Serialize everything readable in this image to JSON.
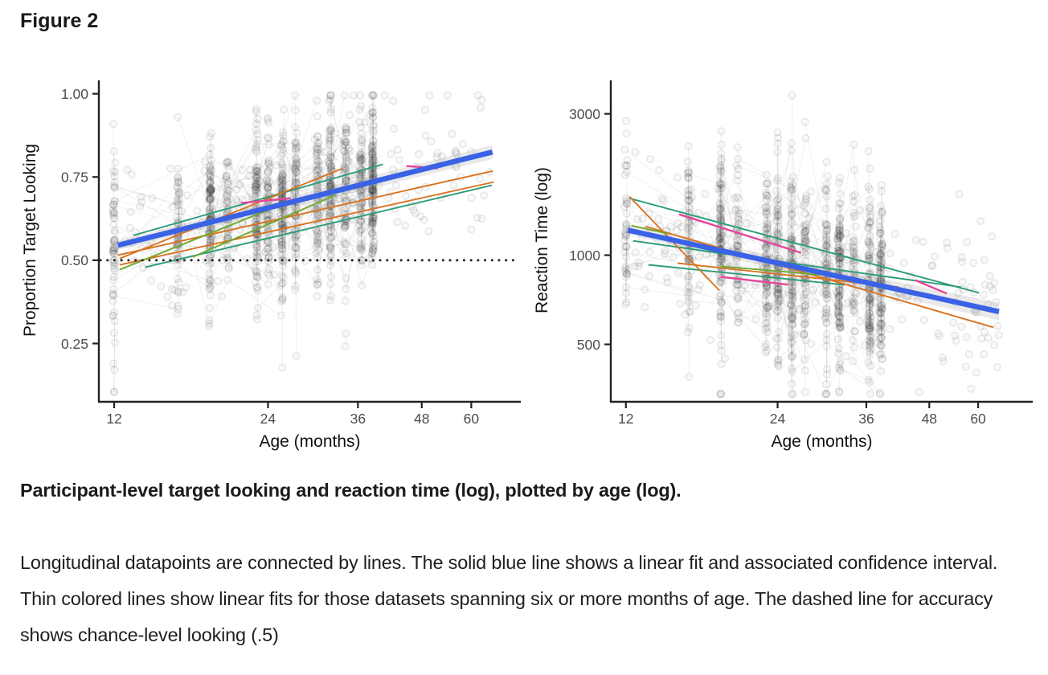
{
  "figure": {
    "label": "Figure 2"
  },
  "caption": {
    "bold": "Participant-level target looking and reaction time (log), plotted by age (log).",
    "body": "Longitudinal datapoints are connected by lines. The solid blue line shows a linear fit and associated confidence interval. Thin colored lines show linear fits for those datasets spanning six or more months of age. The dashed line for accuracy shows chance-level looking (.5)"
  },
  "colors": {
    "fit_blue": "#3A62E6",
    "teal": "#2A9D77",
    "orange": "#D9731F",
    "pink": "#E5459A",
    "green": "#6FA92F",
    "axis": "#222222",
    "tick_label": "#4d4d4d",
    "title_text": "#111111"
  },
  "chart_data": [
    {
      "type": "scatter",
      "name": "accuracy-panel",
      "xlabel": "Age (months)",
      "ylabel": "Proportion Target Looking",
      "x_scale": "log",
      "y_scale": "linear",
      "x_ticks": [
        12,
        24,
        36,
        48,
        60
      ],
      "y_ticks": [
        0.25,
        0.5,
        0.75,
        1.0
      ],
      "y_tick_labels": [
        "0.25",
        "0.50",
        "0.75",
        "1.00"
      ],
      "x_range": [
        11.2,
        75
      ],
      "y_range": [
        0.075,
        1.045
      ],
      "y_clamp": [
        0.105,
        0.995
      ],
      "grid": false,
      "legend": "none",
      "chance_line": 0.5,
      "fit_line": {
        "x": [
          12.2,
          66
        ],
        "y": [
          0.545,
          0.825
        ]
      },
      "ci_halfwidth": [
        0.013,
        0.021
      ],
      "thin_lines": [
        {
          "color": "teal",
          "x": [
            13.1,
            40.3
          ],
          "y": [
            0.575,
            0.788
          ]
        },
        {
          "color": "teal",
          "x": [
            13.8,
            65.8
          ],
          "y": [
            0.479,
            0.725
          ]
        },
        {
          "color": "orange",
          "x": [
            12.2,
            66.1
          ],
          "y": [
            0.515,
            0.768
          ]
        },
        {
          "color": "orange",
          "x": [
            12.3,
            66.4
          ],
          "y": [
            0.486,
            0.735
          ]
        },
        {
          "color": "orange",
          "x": [
            12.3,
            33.5
          ],
          "y": [
            0.505,
            0.775
          ]
        },
        {
          "color": "green",
          "x": [
            12.3,
            24.4
          ],
          "y": [
            0.472,
            0.655
          ]
        },
        {
          "color": "green",
          "x": [
            17.1,
            32.6
          ],
          "y": [
            0.51,
            0.696
          ]
        },
        {
          "color": "pink",
          "x": [
            21.3,
            26.6
          ],
          "y": [
            0.672,
            0.686
          ]
        },
        {
          "color": "pink",
          "x": [
            44.8,
            51.6
          ],
          "y": [
            0.783,
            0.776
          ]
        }
      ],
      "scatter": {
        "seed": 7,
        "cluster_ages": [
          12,
          16,
          18.5,
          20,
          22.8,
          24,
          25.6,
          27.2,
          30,
          31.8,
          34,
          36.5,
          38.5
        ],
        "cluster_weights": [
          80,
          55,
          115,
          45,
          85,
          80,
          100,
          45,
          70,
          105,
          40,
          95,
          50
        ],
        "n_participants": 300,
        "n_extra": 520,
        "y_sd": 0.115,
        "vertical_frac": 0.3
      }
    },
    {
      "type": "scatter",
      "name": "rt-panel",
      "xlabel": "Age (months)",
      "ylabel": "Reaction Time (log)",
      "x_scale": "log",
      "y_scale": "log",
      "x_ticks": [
        12,
        24,
        36,
        48,
        60
      ],
      "y_ticks": [
        500,
        1000,
        3000
      ],
      "y_tick_labels": [
        "500",
        "1000",
        "3000"
      ],
      "x_range": [
        11.2,
        77
      ],
      "y_range": [
        320,
        3940
      ],
      "y_clamp": [
        340,
        3780
      ],
      "grid": false,
      "legend": "none",
      "chance_line": null,
      "fit_line": {
        "x": [
          12.1,
          66
        ],
        "y": [
          1215,
          645
        ]
      },
      "ci_mult": [
        1.035,
        1.07
      ],
      "thin_lines": [
        {
          "color": "teal",
          "x": [
            12.2,
            60.3
          ],
          "y": [
            1556,
            746
          ]
        },
        {
          "color": "teal",
          "x": [
            12.4,
            55.5
          ],
          "y": [
            1118,
            780
          ]
        },
        {
          "color": "teal",
          "x": [
            13.3,
            32.6
          ],
          "y": [
            928,
            794
          ]
        },
        {
          "color": "orange",
          "x": [
            12.2,
            18.4
          ],
          "y": [
            1576,
            760
          ]
        },
        {
          "color": "orange",
          "x": [
            13.1,
            64.3
          ],
          "y": [
            1251,
            571
          ]
        },
        {
          "color": "orange",
          "x": [
            15.2,
            41.8
          ],
          "y": [
            940,
            780
          ]
        },
        {
          "color": "pink",
          "x": [
            15.3,
            26.7
          ],
          "y": [
            1374,
            1019
          ]
        },
        {
          "color": "pink",
          "x": [
            18.5,
            25.2
          ],
          "y": [
            845,
            795
          ]
        },
        {
          "color": "pink",
          "x": [
            45.0,
            52.0
          ],
          "y": [
            824,
            742
          ]
        },
        {
          "color": "green",
          "x": [
            12.3,
            14.5
          ],
          "y": [
            1259,
            1183
          ]
        },
        {
          "color": "green",
          "x": [
            18.5,
            32.7
          ],
          "y": [
            917,
            845
          ]
        }
      ],
      "scatter": {
        "seed": 11,
        "cluster_ages": [
          12,
          16,
          18.5,
          20,
          22.8,
          24,
          25.6,
          27.2,
          30,
          31.8,
          34,
          36.5,
          38.5
        ],
        "cluster_weights": [
          75,
          60,
          115,
          45,
          80,
          80,
          100,
          45,
          70,
          105,
          40,
          90,
          50
        ],
        "n_participants": 300,
        "n_extra": 520,
        "y_sd": 0.15,
        "vertical_frac": 0.4
      }
    }
  ]
}
